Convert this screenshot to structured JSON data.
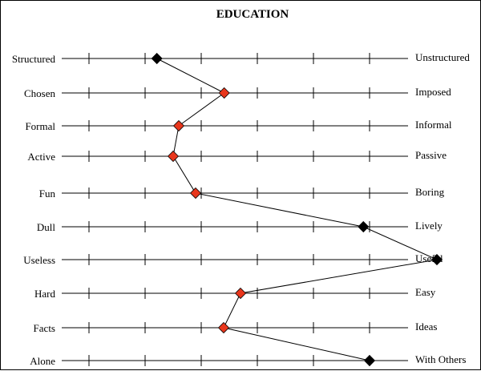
{
  "chart_data": {
    "type": "line",
    "title": "EDUCATION",
    "scale_points": [
      1,
      2,
      3,
      4,
      5,
      6,
      7
    ],
    "rows": [
      {
        "left": "Structured",
        "right": "Unstructured",
        "value": 2.21,
        "marker": "black"
      },
      {
        "left": "Chosen",
        "right": "Imposed",
        "value": 3.41,
        "marker": "red"
      },
      {
        "left": "Formal",
        "right": "Informal",
        "value": 2.6,
        "marker": "red"
      },
      {
        "left": "Active",
        "right": "Passive",
        "value": 2.5,
        "marker": "red"
      },
      {
        "left": "Fun",
        "right": "Boring",
        "value": 2.9,
        "marker": "red"
      },
      {
        "left": "Dull",
        "right": "Lively",
        "value": 5.89,
        "marker": "black"
      },
      {
        "left": "Useless",
        "right": "Useful",
        "value": 7.2,
        "marker": "black"
      },
      {
        "left": "Hard",
        "right": "Easy",
        "value": 3.7,
        "marker": "red"
      },
      {
        "left": "Facts",
        "right": "Ideas",
        "value": 3.4,
        "marker": "red"
      },
      {
        "left": "Alone",
        "right": "With Others",
        "value": 6.0,
        "marker": "black"
      }
    ],
    "colors": {
      "red": "#e8361c",
      "black": "#000000",
      "line": "#000000",
      "axis": "#000000"
    }
  }
}
